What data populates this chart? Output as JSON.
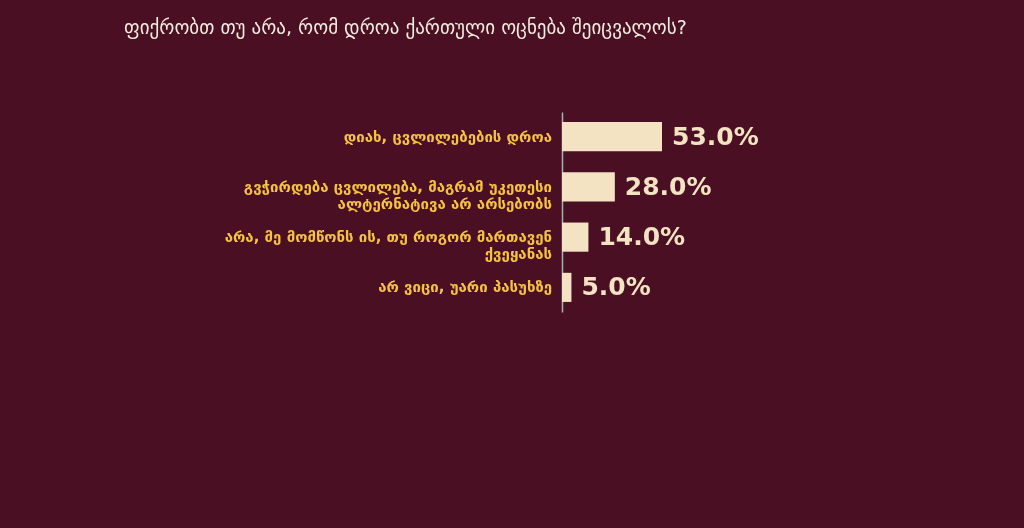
{
  "chart_data": {
    "type": "bar",
    "orientation": "horizontal",
    "title": "ფიქრობთ თუ არა, რომ დროა ქართული ოცნება შეიცვალოს?",
    "categories": [
      "დიახ, ცვლილებების დროა",
      "გვჭირდება ცვლილება, მაგრამ უკეთესი ალტერნატივა არ არსებობს",
      "არა, მე მომწონს ის, თუ როგორ მართავენ ქვეყანას",
      "არ ვიცი, უარი პასუხზე"
    ],
    "values": [
      53.0,
      28.0,
      14.0,
      5.0
    ],
    "color": "#f3e3c3",
    "value_labels": [
      "53.0%",
      "28.0%",
      "14.0%",
      "5.0%"
    ],
    "grid": false
  }
}
